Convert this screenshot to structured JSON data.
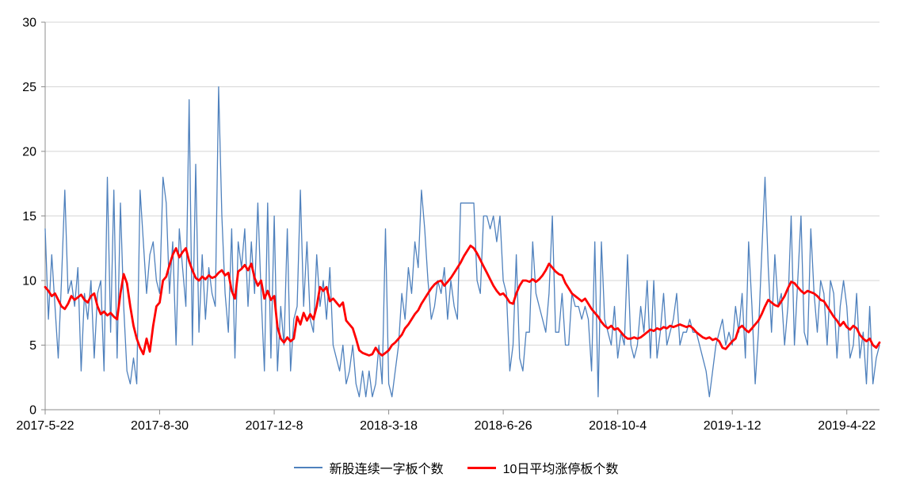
{
  "chart_data": {
    "type": "line",
    "title": "",
    "xlabel": "",
    "ylabel": "",
    "ylim": [
      0,
      30
    ],
    "y_ticks": [
      0,
      5,
      10,
      15,
      20,
      25,
      30
    ],
    "x_tick_labels": [
      "2017-5-22",
      "2017-8-30",
      "2017-12-8",
      "2018-3-18",
      "2018-6-26",
      "2018-10-4",
      "2019-1-12",
      "2019-4-22"
    ],
    "x_tick_indices": [
      0,
      35,
      70,
      105,
      140,
      175,
      210,
      245
    ],
    "grid": true,
    "legend_position": "bottom",
    "series": [
      {
        "name": "新股连续一字板个数",
        "color": "#4F81BD",
        "width": 1.3,
        "values": [
          14,
          7,
          12,
          8,
          4,
          10,
          17,
          9,
          10,
          8,
          11,
          3,
          9,
          7,
          10,
          4,
          9,
          10,
          3,
          18,
          6,
          17,
          4,
          16,
          8,
          3,
          2,
          4,
          2,
          17,
          13,
          9,
          12,
          13,
          10,
          9,
          18,
          16,
          9,
          13,
          5,
          14,
          11,
          8,
          24,
          5,
          19,
          6,
          12,
          7,
          11,
          9,
          8,
          25,
          15,
          9,
          6,
          14,
          4,
          13,
          11,
          14,
          8,
          13,
          9,
          16,
          9,
          3,
          16,
          4,
          15,
          3,
          8,
          5,
          14,
          3,
          7,
          8,
          17,
          8,
          13,
          7,
          6,
          12,
          8,
          10,
          7,
          11,
          5,
          4,
          3,
          5,
          2,
          3,
          5,
          2,
          1,
          3,
          1,
          3,
          1,
          2,
          5,
          2,
          14,
          2,
          1,
          3,
          5,
          9,
          7,
          11,
          9,
          13,
          11,
          17,
          14,
          10,
          7,
          8,
          10,
          9,
          11,
          7,
          10,
          8,
          7,
          16,
          16,
          16,
          16,
          16,
          10,
          9,
          15,
          15,
          14,
          15,
          13,
          15,
          10,
          9,
          3,
          5,
          12,
          4,
          3,
          6,
          6,
          13,
          9,
          8,
          7,
          6,
          9,
          15,
          6,
          6,
          9,
          5,
          5,
          9,
          8,
          8,
          7,
          8,
          7,
          3,
          13,
          1,
          13,
          7,
          6,
          5,
          8,
          4,
          6,
          5,
          12,
          5,
          4,
          5,
          8,
          6,
          10,
          4,
          10,
          4,
          6,
          9,
          5,
          6,
          7,
          9,
          5,
          6,
          6,
          7,
          6,
          6,
          5,
          4,
          3,
          1,
          3,
          5,
          6,
          7,
          5,
          6,
          5,
          8,
          6,
          9,
          4,
          13,
          8,
          2,
          6,
          12,
          18,
          11,
          6,
          12,
          8,
          9,
          5,
          8,
          15,
          5,
          10,
          15,
          6,
          5,
          14,
          9,
          6,
          10,
          9,
          5,
          10,
          9,
          4,
          8,
          10,
          8,
          4,
          5,
          9,
          4,
          6,
          2,
          8,
          2,
          4,
          5
        ]
      },
      {
        "name": "10日平均涨停板个数",
        "color": "#FF0000",
        "width": 2.8,
        "values": [
          9.5,
          9.2,
          8.8,
          9.0,
          8.5,
          8.0,
          7.8,
          8.2,
          8.8,
          8.5,
          8.7,
          8.9,
          8.5,
          8.3,
          8.8,
          9.0,
          8.0,
          7.4,
          7.6,
          7.3,
          7.5,
          7.2,
          7.0,
          9.0,
          10.5,
          9.8,
          8.0,
          6.5,
          5.5,
          4.8,
          4.3,
          5.5,
          4.5,
          6.5,
          8.0,
          8.3,
          10.0,
          10.3,
          11.2,
          12.0,
          12.5,
          11.8,
          12.2,
          12.5,
          11.5,
          10.8,
          10.2,
          10.0,
          10.3,
          10.1,
          10.4,
          10.2,
          10.3,
          10.6,
          10.8,
          10.4,
          10.6,
          9.2,
          8.6,
          10.7,
          10.9,
          11.2,
          10.8,
          11.3,
          10.2,
          9.6,
          10.0,
          8.6,
          9.2,
          8.5,
          8.8,
          6.4,
          5.5,
          5.2,
          5.6,
          5.3,
          5.5,
          7.2,
          6.6,
          7.5,
          6.9,
          7.4,
          7.0,
          8.0,
          9.5,
          9.2,
          9.5,
          8.4,
          8.6,
          8.3,
          8.0,
          8.3,
          6.9,
          6.6,
          6.3,
          5.5,
          4.6,
          4.4,
          4.3,
          4.2,
          4.3,
          4.8,
          4.4,
          4.2,
          4.4,
          4.6,
          5.0,
          5.2,
          5.5,
          5.8,
          6.3,
          6.6,
          7.0,
          7.4,
          7.7,
          8.2,
          8.6,
          9.0,
          9.4,
          9.7,
          9.9,
          10.0,
          9.6,
          9.9,
          10.2,
          10.6,
          11.0,
          11.4,
          11.9,
          12.3,
          12.7,
          12.5,
          12.1,
          11.6,
          11.1,
          10.6,
          10.1,
          9.6,
          9.2,
          8.9,
          9.0,
          8.7,
          8.3,
          8.2,
          9.0,
          9.6,
          10.0,
          10.0,
          9.9,
          10.1,
          9.9,
          10.1,
          10.4,
          10.8,
          11.3,
          11.0,
          10.7,
          10.5,
          10.4,
          9.8,
          9.4,
          9.0,
          8.8,
          8.6,
          8.4,
          8.6,
          8.2,
          7.8,
          7.5,
          7.2,
          6.8,
          6.5,
          6.3,
          6.5,
          6.2,
          6.3,
          6.0,
          5.7,
          5.5,
          5.5,
          5.6,
          5.5,
          5.6,
          5.8,
          6.0,
          6.2,
          6.1,
          6.3,
          6.2,
          6.4,
          6.3,
          6.5,
          6.4,
          6.5,
          6.6,
          6.5,
          6.4,
          6.5,
          6.3,
          6.0,
          5.8,
          5.6,
          5.5,
          5.6,
          5.4,
          5.5,
          5.3,
          4.8,
          4.7,
          5.0,
          5.3,
          5.5,
          6.3,
          6.5,
          6.2,
          6.0,
          6.3,
          6.6,
          6.9,
          7.4,
          8.0,
          8.5,
          8.3,
          8.1,
          8.0,
          8.4,
          8.8,
          9.4,
          9.9,
          9.8,
          9.5,
          9.2,
          9.0,
          9.2,
          9.1,
          9.0,
          8.8,
          8.5,
          8.4,
          8.0,
          7.6,
          7.2,
          6.9,
          6.5,
          6.8,
          6.4,
          6.2,
          6.5,
          6.3,
          5.8,
          5.5,
          5.3,
          5.5,
          5.0,
          4.8,
          5.2
        ]
      }
    ]
  },
  "style": {
    "background": "#FFFFFF",
    "grid_color": "#D6D6D6",
    "axis_color": "#8C8C8C",
    "text_color": "#000000",
    "tick_font_size": 16
  }
}
